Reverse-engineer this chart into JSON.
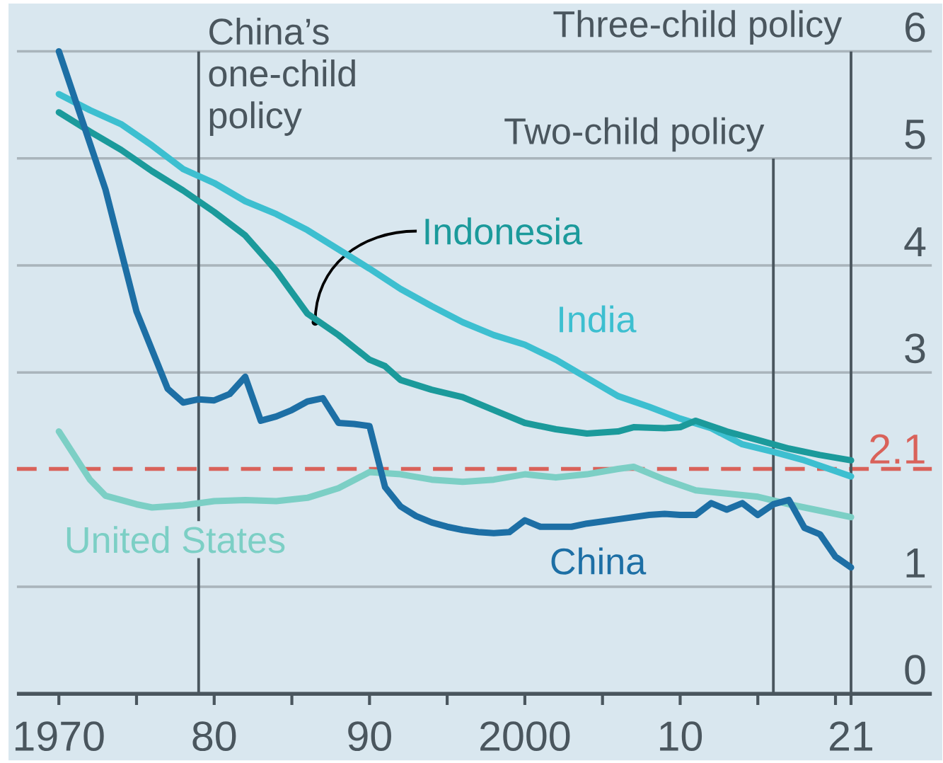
{
  "chart_data": {
    "type": "line",
    "xlim": [
      1967.3,
      2026.2
    ],
    "ylim": [
      0,
      6.45
    ],
    "xticks": [
      1970,
      {
        "value": 1975,
        "label": null
      },
      {
        "value": 1980,
        "label": "80"
      },
      {
        "value": 1985,
        "label": null
      },
      {
        "value": 1990,
        "label": "90"
      },
      {
        "value": 1995,
        "label": null
      },
      2000,
      {
        "value": 2005,
        "label": null
      },
      {
        "value": 2010,
        "label": "10"
      },
      {
        "value": 2015,
        "label": null
      },
      {
        "value": 2020,
        "label": null
      },
      {
        "value": 2021,
        "label": "21"
      }
    ],
    "yticks": [
      0,
      1,
      3,
      4,
      5,
      6
    ],
    "grid": "y",
    "series": [
      {
        "name": "India",
        "color": "#3dbfd0",
        "x": [
          1970,
          1972,
          1974,
          1976,
          1978,
          1980,
          1982,
          1984,
          1986,
          1988,
          1990,
          1992,
          1994,
          1996,
          1998,
          2000,
          2002,
          2004,
          2006,
          2008,
          2010,
          2012,
          2014,
          2016,
          2018,
          2019,
          2021
        ],
        "values": [
          5.6,
          5.45,
          5.32,
          5.12,
          4.9,
          4.77,
          4.6,
          4.48,
          4.33,
          4.15,
          3.97,
          3.78,
          3.62,
          3.47,
          3.35,
          3.26,
          3.12,
          2.95,
          2.78,
          2.68,
          2.57,
          2.48,
          2.33,
          2.26,
          2.18,
          2.13,
          2.03
        ]
      },
      {
        "name": "Indonesia",
        "color": "#1b9a9b",
        "x": [
          1970,
          1972,
          1974,
          1976,
          1978,
          1980,
          1982,
          1984,
          1986,
          1988,
          1990,
          1991,
          1992,
          1994,
          1996,
          1998,
          2000,
          2002,
          2004,
          2006,
          2007,
          2009,
          2010,
          2011,
          2013,
          2015,
          2017,
          2019,
          2021
        ],
        "values": [
          5.43,
          5.25,
          5.08,
          4.88,
          4.7,
          4.5,
          4.28,
          3.95,
          3.55,
          3.35,
          3.12,
          3.06,
          2.93,
          2.84,
          2.77,
          2.65,
          2.53,
          2.47,
          2.43,
          2.45,
          2.49,
          2.48,
          2.49,
          2.55,
          2.45,
          2.37,
          2.29,
          2.23,
          2.18
        ]
      },
      {
        "name": "United States",
        "color": "#7ccfc5",
        "x": [
          1970,
          1972,
          1973,
          1975,
          1976,
          1978,
          1980,
          1982,
          1984,
          1986,
          1988,
          1990,
          1992,
          1994,
          1996,
          1998,
          2000,
          2002,
          2004,
          2006,
          2007,
          2009,
          2011,
          2013,
          2015,
          2017,
          2019,
          2021
        ],
        "values": [
          2.45,
          2.0,
          1.85,
          1.77,
          1.74,
          1.76,
          1.8,
          1.81,
          1.8,
          1.83,
          1.92,
          2.07,
          2.05,
          2.0,
          1.98,
          2.0,
          2.05,
          2.02,
          2.05,
          2.1,
          2.12,
          2.0,
          1.9,
          1.87,
          1.84,
          1.77,
          1.71,
          1.65
        ]
      },
      {
        "name": "China",
        "color": "#1d6fa5",
        "x": [
          1970,
          1973,
          1975,
          1977,
          1978,
          1979,
          1980,
          1981,
          1982,
          1983,
          1984,
          1985,
          1986,
          1987,
          1988,
          1989,
          1990,
          1991,
          1992,
          1993,
          1994,
          1995,
          1996,
          1997,
          1998,
          1999,
          2000,
          2001,
          2002,
          2003,
          2004,
          2005,
          2006,
          2007,
          2008,
          2009,
          2010,
          2011,
          2012,
          2013,
          2014,
          2015,
          2016,
          2017,
          2018,
          2019,
          2020,
          2021
        ],
        "values": [
          6.0,
          4.71,
          3.57,
          2.85,
          2.72,
          2.75,
          2.74,
          2.8,
          2.96,
          2.55,
          2.59,
          2.65,
          2.73,
          2.76,
          2.53,
          2.52,
          2.5,
          1.93,
          1.75,
          1.66,
          1.6,
          1.56,
          1.53,
          1.51,
          1.5,
          1.51,
          1.62,
          1.56,
          1.56,
          1.56,
          1.59,
          1.61,
          1.63,
          1.65,
          1.67,
          1.68,
          1.67,
          1.67,
          1.78,
          1.72,
          1.78,
          1.67,
          1.77,
          1.81,
          1.55,
          1.49,
          1.28,
          1.18
        ]
      }
    ],
    "ref_lines": [
      {
        "axis": "y",
        "value": 2.1,
        "label": "2.1",
        "color": "#d9625a",
        "line_style": "dashed"
      },
      {
        "axis": "x",
        "value": 1979,
        "label": "China’s one-child policy"
      },
      {
        "axis": "x",
        "value": 2016,
        "label": "Two-child policy"
      },
      {
        "axis": "x",
        "value": 2021,
        "label": "Three-child policy"
      }
    ]
  }
}
